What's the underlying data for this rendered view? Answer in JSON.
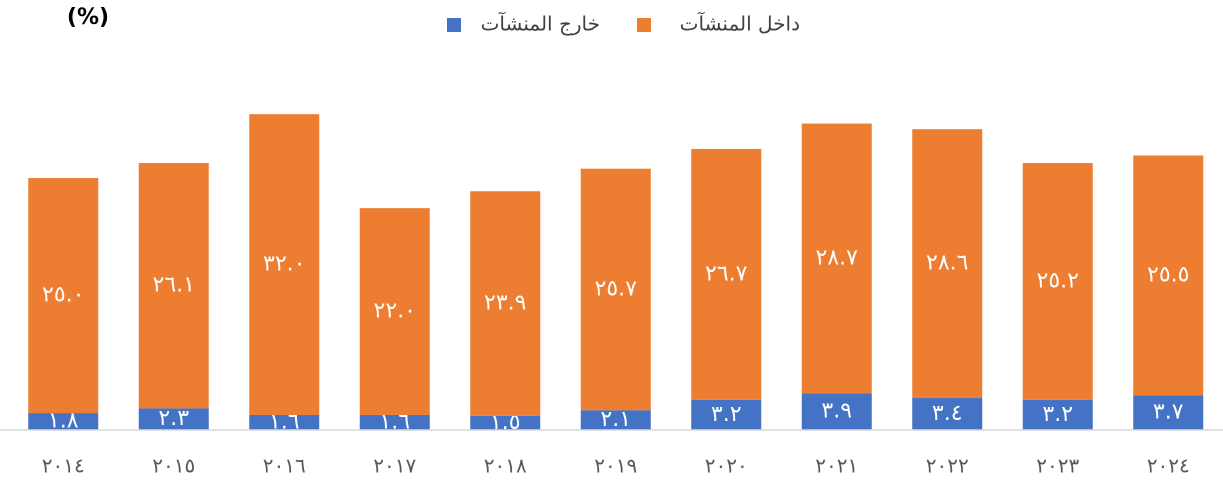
{
  "chart_data": {
    "type": "stacked_bar",
    "title": "(%)",
    "categories": [
      "٢٠١٤",
      "٢٠١٥",
      "٢٠١٦",
      "٢٠١٧",
      "٢٠١٨",
      "٢٠١٩",
      "٢٠٢٠",
      "٢٠٢١",
      "٢٠٢٢",
      "٢٠٢٣",
      "٢٠٢٤"
    ],
    "series": [
      {
        "name": "خارج المنشآت",
        "color": "#4472c4",
        "values": [
          1.8,
          2.3,
          1.6,
          1.6,
          1.5,
          2.1,
          3.2,
          3.9,
          3.4,
          3.2,
          3.7
        ],
        "value_labels": [
          "١.٨",
          "٢.٣",
          "١.٦",
          "١.٦",
          "١.٥",
          "٢.١",
          "٣.٢",
          "٣.٩",
          "٣.٤",
          "٣.٢",
          "٣.٧"
        ]
      },
      {
        "name": "داخل المنشآت",
        "color": "#ed7d31",
        "values": [
          25.0,
          26.1,
          32.0,
          22.0,
          23.9,
          25.7,
          26.7,
          28.7,
          28.6,
          25.2,
          25.5
        ],
        "value_labels": [
          "٢٥.٠",
          "٢٦.١",
          "٣٢.٠",
          "٢٢.٠",
          "٢٣.٩",
          "٢٥.٧",
          "٢٦.٧",
          "٢٨.٧",
          "٢٨.٦",
          "٢٥.٢",
          "٢٥.٥"
        ]
      }
    ],
    "ylim": [
      0,
      35
    ],
    "grid": false
  }
}
